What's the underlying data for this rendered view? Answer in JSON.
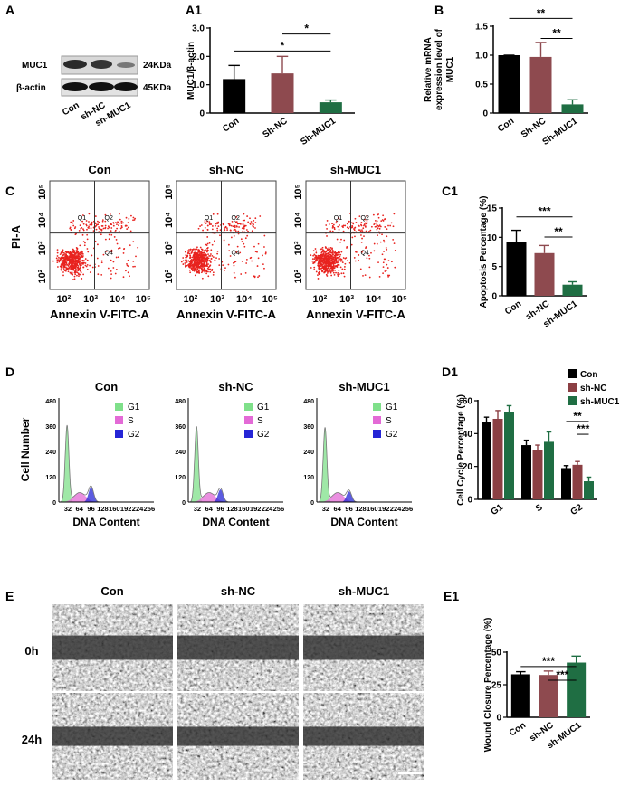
{
  "panels": {
    "A": {
      "label": "A",
      "proteins": [
        "MUC1",
        "β-actin"
      ],
      "sizes": [
        "24KDa",
        "45KDa"
      ],
      "lanes": [
        "Con",
        "sh-NC",
        "sh-MUC1"
      ]
    },
    "C": {
      "label": "C",
      "titles": [
        "Con",
        "sh-NC",
        "sh-MUC1"
      ],
      "ylabel": "PI-A",
      "xlabel": "Annexin V-FITC-A",
      "ticks": [
        "10²",
        "10³",
        "10⁴",
        "10⁵"
      ],
      "quadrants": [
        "Q1",
        "Q2",
        "Q4"
      ]
    },
    "D": {
      "label": "D",
      "titles": [
        "Con",
        "sh-NC",
        "sh-MUC1"
      ],
      "ylabel": "Cell Number",
      "xlabel": "DNA Content",
      "yticks": [
        0,
        120,
        240,
        360,
        480
      ],
      "xticks": [
        32,
        64,
        96,
        128,
        160,
        192,
        224,
        256
      ],
      "legend": [
        "G1",
        "S",
        "G2"
      ]
    },
    "E": {
      "label": "E",
      "titles": [
        "Con",
        "sh-NC",
        "sh-MUC1"
      ],
      "rows": [
        "0h",
        "24h"
      ]
    }
  },
  "chart_data": [
    {
      "type": "bar",
      "panel": "A1",
      "ylabel": [
        "MUC1/β-actin"
      ],
      "categories": [
        "Con",
        "Sh-NC",
        "Sh-MUC1"
      ],
      "values": [
        1.2,
        1.4,
        0.38
      ],
      "errors": [
        0.48,
        0.6,
        0.08
      ],
      "colors": [
        "#000000",
        "#8e4a4f",
        "#1f6e43"
      ],
      "ylim": [
        0,
        3
      ],
      "yticks": [
        0,
        {
          "value": 1,
          "label": "1.0"
        },
        {
          "value": 2,
          "label": "2.0"
        },
        {
          "value": 3,
          "label": "3.0"
        }
      ],
      "annotations": [
        "*",
        "*"
      ]
    },
    {
      "type": "bar",
      "panel": "B",
      "ylabel": [
        "Relative mRNA",
        "expression level of",
        "MUC1"
      ],
      "categories": [
        "Con",
        "Sh-NC",
        "Sh-MUC1"
      ],
      "values": [
        1.0,
        0.97,
        0.15
      ],
      "errors": [
        0,
        0.25,
        0.08
      ],
      "colors": [
        "#000000",
        "#8e4a4f",
        "#1f6e43"
      ],
      "ylim": [
        0,
        1.5
      ],
      "yticks": [
        0,
        0.5,
        {
          "value": 1,
          "label": "1.0"
        },
        1.5
      ],
      "annotations": [
        "**",
        "**"
      ]
    },
    {
      "type": "bar",
      "panel": "C1",
      "ylabel": [
        "Apoptosis Percentage (%)"
      ],
      "categories": [
        "Con",
        "sh-NC",
        "sh-MUC1"
      ],
      "values": [
        9.2,
        7.3,
        1.9
      ],
      "errors": [
        2.0,
        1.3,
        0.5
      ],
      "colors": [
        "#000000",
        "#8e4a4f",
        "#1f6e43"
      ],
      "ylim": [
        0,
        15
      ],
      "yticks": [
        0,
        5,
        10,
        15
      ],
      "annotations": [
        "***",
        "**"
      ]
    },
    {
      "type": "bar",
      "panel": "D1",
      "ylabel": [
        "Cell Cycle Percentage (%)"
      ],
      "categories": [
        "G1",
        "S",
        "G2"
      ],
      "series": [
        {
          "name": "Con",
          "color": "#000000",
          "values": [
            47,
            33,
            19
          ],
          "errors": [
            3,
            3,
            1.5
          ]
        },
        {
          "name": "sh-NC",
          "color": "#8b3f43",
          "values": [
            49,
            30,
            21
          ],
          "errors": [
            5,
            3,
            2
          ]
        },
        {
          "name": "sh-MUC1",
          "color": "#1f6e43",
          "values": [
            53,
            35,
            11
          ],
          "errors": [
            4,
            6,
            2.5
          ]
        }
      ],
      "legend": "upper right",
      "ylim": [
        0,
        60
      ],
      "yticks": [
        0,
        20,
        40,
        60
      ],
      "annotations": [
        "**",
        "***"
      ]
    },
    {
      "type": "bar",
      "panel": "E1",
      "ylabel": [
        "Wound Closure Percentage (%)"
      ],
      "categories": [
        "Con",
        "sh-NC",
        "sh-MUC1"
      ],
      "values": [
        33,
        32.5,
        42
      ],
      "errors": [
        2,
        3,
        5
      ],
      "colors": [
        "#000000",
        "#8e4a4f",
        "#1f6e43"
      ],
      "ylim": [
        0,
        50
      ],
      "yticks": [
        0,
        25,
        50
      ],
      "annotations": [
        "***",
        "***"
      ]
    }
  ]
}
